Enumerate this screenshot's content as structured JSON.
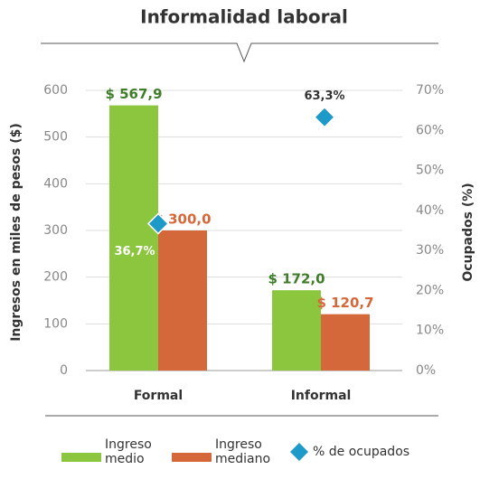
{
  "chart_data": {
    "type": "bar",
    "title": "Informalidad laboral",
    "categories": [
      "Formal",
      "Informal"
    ],
    "series": [
      {
        "name": "Ingreso medio",
        "color": "#8cc63f",
        "label_color": "#3f7d2a",
        "values": [
          567.9,
          172.0
        ],
        "value_labels": [
          "$ 567,9",
          "$ 172,0"
        ]
      },
      {
        "name": "Ingreso mediano",
        "color": "#d4683a",
        "label_color": "#d4683a",
        "values": [
          300.0,
          120.7
        ],
        "value_labels": [
          "$ 300,0",
          "$ 120,7"
        ]
      },
      {
        "name": "% de ocupados",
        "type": "scatter",
        "axis": "y2",
        "color": "#1e9ac8",
        "values": [
          36.7,
          63.3
        ],
        "value_labels": [
          "36,7%",
          "63,3%"
        ]
      }
    ],
    "ylabel": "Ingresos en miles de pesos ($)",
    "y2label": "Ocupados (%)",
    "ylim": [
      0,
      600
    ],
    "yticks": [
      0,
      100,
      200,
      300,
      400,
      500,
      600
    ],
    "y2lim": [
      0,
      70
    ],
    "y2ticks": [
      {
        "value": 0,
        "label": "0%"
      },
      {
        "value": 10,
        "label": "10%"
      },
      {
        "value": 20,
        "label": "20%"
      },
      {
        "value": 30,
        "label": "30%"
      },
      {
        "value": 40,
        "label": "40%"
      },
      {
        "value": 50,
        "label": "50%"
      },
      {
        "value": 60,
        "label": "60%"
      },
      {
        "value": 70,
        "label": "70%"
      }
    ],
    "grid": true,
    "legend": "bottom"
  }
}
